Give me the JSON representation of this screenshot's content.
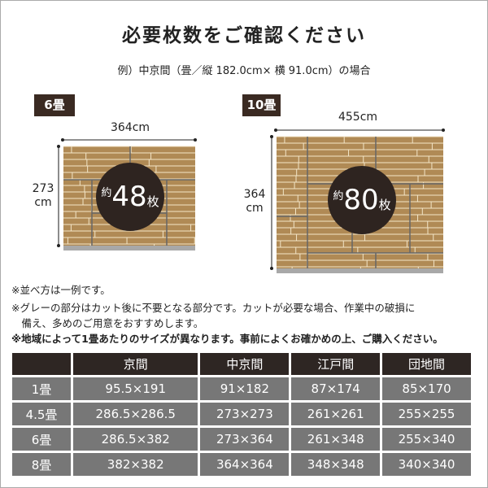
{
  "title": "必要枚数をご確認ください",
  "subtitle": "例）中京間（畳／縦 182.0cm× 横 91.0cm）の場合",
  "diagrams": [
    {
      "label": "6畳",
      "width": "364cm",
      "height_num": "273",
      "height_unit": "cm",
      "count_prefix": "約",
      "count": "48",
      "count_suffix": "枚"
    },
    {
      "label": "10畳",
      "width": "455cm",
      "height_num": "364",
      "height_unit": "cm",
      "count_prefix": "約",
      "count": "80",
      "count_suffix": "枚"
    }
  ],
  "colors": {
    "plank": "#b08a55",
    "joint": "#f3e6c8",
    "circle": "#2e2420",
    "tag": "#3a2a22",
    "cut_area": "#a8a8a8",
    "cell": "#777777",
    "header": "#2e2623"
  },
  "notes": [
    "※並べ方は一例です。",
    "※グレーの部分はカット後に不要となる部分です。カットが必要な場合、作業中の破損に",
    "　備え、多めのご用意をおすすめします。",
    "※地域によって1畳あたりのサイズが異なります。事前によくお確かめの上、ご購入ください。"
  ],
  "table": {
    "headers": [
      "",
      "京間",
      "中京間",
      "江戸間",
      "団地間"
    ],
    "rows": [
      [
        "1畳",
        "95.5×191",
        "91×182",
        "87×174",
        "85×170"
      ],
      [
        "4.5畳",
        "286.5×286.5",
        "273×273",
        "261×261",
        "255×255"
      ],
      [
        "6畳",
        "286.5×382",
        "273×364",
        "261×348",
        "255×340"
      ],
      [
        "8畳",
        "382×382",
        "364×364",
        "348×348",
        "340×340"
      ]
    ]
  }
}
